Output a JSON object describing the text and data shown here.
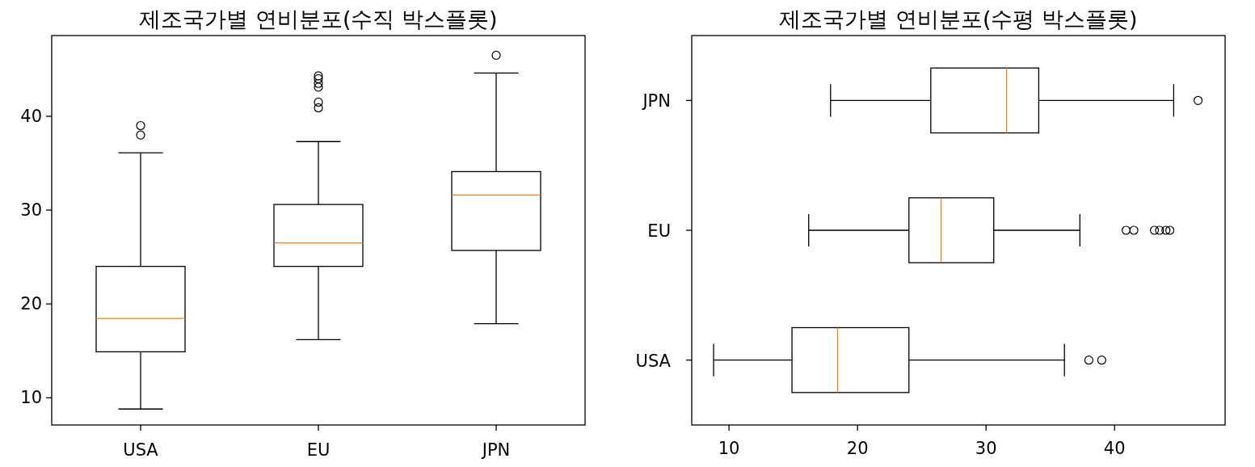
{
  "chart_data": [
    {
      "type": "box",
      "title": "제조국가별 연비분포(수직 박스플롯)",
      "categories": [
        "USA",
        "EU",
        "JPN"
      ],
      "ylim": [
        7.1,
        48.6
      ],
      "yticks": [
        10,
        20,
        30,
        40
      ],
      "grid": false,
      "boxes": [
        {
          "low": 8.8,
          "q1": 14.9,
          "median": 18.45,
          "q3": 24.0,
          "high": 36.1,
          "outliers": [
            38.0,
            39.0
          ]
        },
        {
          "low": 16.2,
          "q1": 24.0,
          "median": 26.5,
          "q3": 30.6,
          "high": 37.3,
          "outliers": [
            40.9,
            41.5,
            43.1,
            43.5,
            44.0,
            44.3
          ]
        },
        {
          "low": 17.9,
          "q1": 25.7,
          "median": 31.6,
          "q3": 34.1,
          "high": 44.6,
          "outliers": [
            46.5
          ]
        }
      ]
    },
    {
      "type": "box",
      "title": "제조국가별 연비분포(수평 박스플롯)",
      "orientation": "horizontal",
      "categories": [
        "JPN",
        "EU",
        "USA"
      ],
      "xlim": [
        7.1,
        48.6
      ],
      "xticks": [
        10,
        20,
        30,
        40
      ],
      "grid": false,
      "boxes": [
        {
          "low": 17.9,
          "q1": 25.7,
          "median": 31.6,
          "q3": 34.1,
          "high": 44.6,
          "outliers": [
            46.5
          ]
        },
        {
          "low": 16.2,
          "q1": 24.0,
          "median": 26.5,
          "q3": 30.6,
          "high": 37.3,
          "outliers": [
            40.9,
            41.5,
            43.1,
            43.5,
            44.0,
            44.3
          ]
        },
        {
          "low": 8.8,
          "q1": 14.9,
          "median": 18.45,
          "q3": 24.0,
          "high": 36.1,
          "outliers": [
            38.0,
            39.0
          ]
        }
      ]
    }
  ]
}
